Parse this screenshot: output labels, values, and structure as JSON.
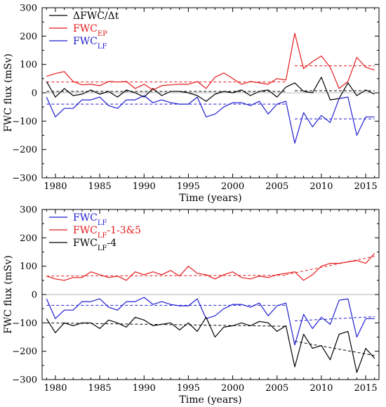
{
  "chart_data": [
    {
      "type": "line",
      "xlabel": "Time (years)",
      "ylabel": "FWC flux (mSv)",
      "xlim": [
        1978.5,
        2016.5
      ],
      "ylim": [
        -300,
        300
      ],
      "xticks": [
        1980,
        1985,
        1990,
        1995,
        2000,
        2005,
        2010,
        2015
      ],
      "yticks": [
        -300,
        -200,
        -100,
        0,
        100,
        200,
        300
      ],
      "zero_line": true,
      "legend_placement": "top-left",
      "x": [
        1979,
        1980,
        1981,
        1982,
        1983,
        1984,
        1985,
        1986,
        1987,
        1988,
        1989,
        1990,
        1991,
        1992,
        1993,
        1994,
        1995,
        1996,
        1997,
        1998,
        1999,
        2000,
        2001,
        2002,
        2003,
        2004,
        2005,
        2006,
        2007,
        2008,
        2009,
        2010,
        2011,
        2012,
        2013,
        2014,
        2015,
        2016
      ],
      "series": [
        {
          "label_main": "ΔFWC/Δt",
          "label_sub": "",
          "label_suffix": "",
          "color": "#000000",
          "values": [
            40,
            -15,
            15,
            -10,
            -5,
            10,
            -5,
            5,
            -15,
            10,
            0,
            -15,
            15,
            -10,
            5,
            5,
            0,
            -10,
            -30,
            -5,
            5,
            0,
            10,
            -10,
            5,
            10,
            -15,
            20,
            35,
            5,
            0,
            55,
            -25,
            -20,
            35,
            -10,
            10,
            -5
          ],
          "trend": [
            {
              "x": [
                1979,
                2006
              ],
              "y": [
                5,
                5
              ]
            },
            {
              "x": [
                2007,
                2016
              ],
              "y": [
                7,
                7
              ]
            }
          ]
        },
        {
          "label_main": "FWC",
          "label_sub": "EP",
          "label_suffix": "",
          "color": "#e41a1c",
          "values": [
            58,
            68,
            75,
            40,
            28,
            30,
            25,
            40,
            38,
            40,
            15,
            30,
            10,
            25,
            28,
            30,
            30,
            40,
            15,
            55,
            70,
            50,
            30,
            40,
            35,
            30,
            50,
            45,
            210,
            85,
            110,
            130,
            90,
            15,
            40,
            125,
            90,
            80
          ],
          "trend": [
            {
              "x": [
                1979,
                2006
              ],
              "y": [
                38,
                38
              ]
            },
            {
              "x": [
                2007,
                2016
              ],
              "y": [
                95,
                95
              ]
            }
          ]
        },
        {
          "label_main": "FWC",
          "label_sub": "LF",
          "label_suffix": "",
          "color": "#1f1fd1",
          "values": [
            -15,
            -85,
            -55,
            -55,
            -25,
            -25,
            -15,
            -45,
            -55,
            -25,
            -25,
            -10,
            -35,
            -25,
            -35,
            -40,
            -40,
            -15,
            -85,
            -75,
            -50,
            -35,
            -35,
            -45,
            -30,
            -75,
            -40,
            -30,
            -178,
            -70,
            -120,
            -80,
            -105,
            -20,
            -15,
            -150,
            -85,
            -85
          ],
          "trend": [
            {
              "x": [
                1979,
                2006
              ],
              "y": [
                -40,
                -40
              ]
            },
            {
              "x": [
                2007,
                2016
              ],
              "y": [
                -92,
                -92
              ]
            }
          ]
        }
      ]
    },
    {
      "type": "line",
      "xlabel": "Time (years)",
      "ylabel": "FWC flux (mSv)",
      "xlim": [
        1978.5,
        2016.5
      ],
      "ylim": [
        -300,
        300
      ],
      "xticks": [
        1980,
        1985,
        1990,
        1995,
        2000,
        2005,
        2010,
        2015
      ],
      "yticks": [
        -300,
        -200,
        -100,
        0,
        100,
        200,
        300
      ],
      "zero_line": true,
      "legend_placement": "top-left",
      "x": [
        1979,
        1980,
        1981,
        1982,
        1983,
        1984,
        1985,
        1986,
        1987,
        1988,
        1989,
        1990,
        1991,
        1992,
        1993,
        1994,
        1995,
        1996,
        1997,
        1998,
        1999,
        2000,
        2001,
        2002,
        2003,
        2004,
        2005,
        2006,
        2007,
        2008,
        2009,
        2010,
        2011,
        2012,
        2013,
        2014,
        2015,
        2016
      ],
      "series": [
        {
          "label_main": "FWC",
          "label_sub": "LF",
          "label_suffix": "",
          "color": "#1f1fd1",
          "values": [
            -15,
            -85,
            -55,
            -55,
            -25,
            -25,
            -15,
            -45,
            -55,
            -25,
            -25,
            -10,
            -35,
            -25,
            -35,
            -40,
            -40,
            -15,
            -85,
            -75,
            -50,
            -35,
            -35,
            -45,
            -30,
            -75,
            -40,
            -30,
            -178,
            -70,
            -120,
            -80,
            -105,
            -20,
            -15,
            -150,
            -85,
            -85
          ],
          "trend": [
            {
              "x": [
                1979,
                2006
              ],
              "y": [
                -38,
                -38
              ]
            },
            {
              "x": [
                2007,
                2016
              ],
              "y": [
                -93,
                -78
              ]
            }
          ]
        },
        {
          "label_main": "FWC",
          "label_sub": "LF",
          "label_suffix": "-1-3&5",
          "color": "#e41a1c",
          "values": [
            65,
            55,
            50,
            60,
            60,
            80,
            70,
            60,
            65,
            50,
            80,
            70,
            80,
            70,
            85,
            65,
            100,
            75,
            70,
            55,
            70,
            80,
            60,
            55,
            65,
            60,
            70,
            75,
            80,
            50,
            70,
            100,
            110,
            110,
            115,
            120,
            110,
            145
          ],
          "trend": [
            {
              "x": [
                1979,
                2006
              ],
              "y": [
                65,
                68
              ]
            },
            {
              "x": [
                2006,
                2016
              ],
              "y": [
                70,
                135
              ]
            }
          ]
        },
        {
          "label_main": "FWC",
          "label_sub": "LF",
          "label_suffix": "-4",
          "color": "#000000",
          "values": [
            -85,
            -135,
            -100,
            -110,
            -100,
            -100,
            -120,
            -90,
            -100,
            -115,
            -80,
            -90,
            -110,
            -105,
            -100,
            -125,
            -100,
            -130,
            -80,
            -150,
            -115,
            -110,
            -100,
            -110,
            -95,
            -100,
            -130,
            -110,
            -255,
            -140,
            -190,
            -180,
            -230,
            -140,
            -130,
            -275,
            -190,
            -225
          ],
          "trend": [
            {
              "x": [
                1979,
                2006
              ],
              "y": [
                -100,
                -112
              ]
            },
            {
              "x": [
                2007,
                2016
              ],
              "y": [
                -165,
                -215
              ]
            }
          ]
        }
      ]
    }
  ]
}
